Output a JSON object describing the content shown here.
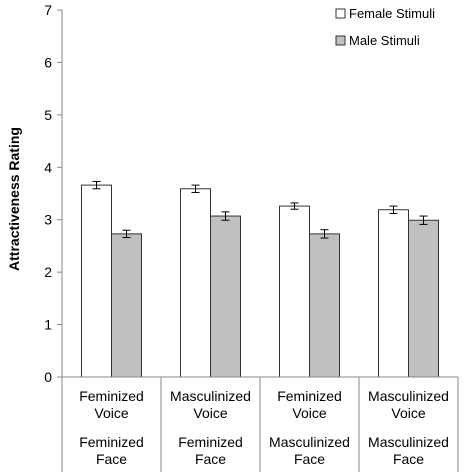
{
  "chart_data": {
    "type": "bar",
    "title": "",
    "xlabel": "",
    "ylabel": "Attractiveness Rating",
    "ylim": [
      0,
      7
    ],
    "yticks": [
      0,
      1,
      2,
      3,
      4,
      5,
      6,
      7
    ],
    "grid": false,
    "legend_position": "top-right",
    "categories": [
      {
        "voice": "Feminized Voice",
        "face": "Feminized Face",
        "voice_lines": [
          "Feminized",
          "Voice"
        ],
        "face_lines": [
          "Feminized",
          "Face"
        ]
      },
      {
        "voice": "Masculinized Voice",
        "face": "Feminized Face",
        "voice_lines": [
          "Masculinized",
          "Voice"
        ],
        "face_lines": [
          "Feminized",
          "Face"
        ]
      },
      {
        "voice": "Feminized Voice",
        "face": "Masculinized Face",
        "voice_lines": [
          "Feminized",
          "Voice"
        ],
        "face_lines": [
          "Masculinized",
          "Face"
        ]
      },
      {
        "voice": "Masculinized Voice",
        "face": "Masculinized Face",
        "voice_lines": [
          "Masculinized",
          "Voice"
        ],
        "face_lines": [
          "Masculinized",
          "Face"
        ]
      }
    ],
    "series": [
      {
        "name": "Female Stimuli",
        "color": "#ffffff",
        "values": [
          3.66,
          3.59,
          3.26,
          3.19
        ],
        "errors": [
          0.07,
          0.07,
          0.06,
          0.07
        ]
      },
      {
        "name": "Male Stimuli",
        "color": "#c0c0c0",
        "values": [
          2.73,
          3.07,
          2.73,
          2.99
        ],
        "errors": [
          0.07,
          0.08,
          0.08,
          0.08
        ]
      }
    ]
  }
}
